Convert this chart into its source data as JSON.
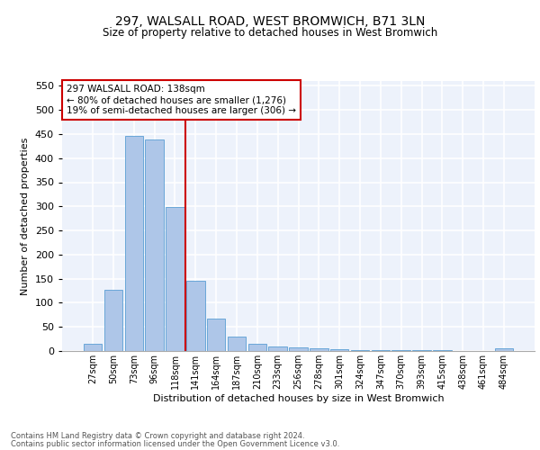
{
  "title1": "297, WALSALL ROAD, WEST BROMWICH, B71 3LN",
  "title2": "Size of property relative to detached houses in West Bromwich",
  "xlabel": "Distribution of detached houses by size in West Bromwich",
  "ylabel": "Number of detached properties",
  "footnote1": "Contains HM Land Registry data © Crown copyright and database right 2024.",
  "footnote2": "Contains public sector information licensed under the Open Government Licence v3.0.",
  "annotation_line1": "297 WALSALL ROAD: 138sqm",
  "annotation_line2": "← 80% of detached houses are smaller (1,276)",
  "annotation_line3": "19% of semi-detached houses are larger (306) →",
  "bar_labels": [
    "27sqm",
    "50sqm",
    "73sqm",
    "96sqm",
    "118sqm",
    "141sqm",
    "164sqm",
    "187sqm",
    "210sqm",
    "233sqm",
    "256sqm",
    "278sqm",
    "301sqm",
    "324sqm",
    "347sqm",
    "370sqm",
    "393sqm",
    "415sqm",
    "438sqm",
    "461sqm",
    "484sqm"
  ],
  "bar_values": [
    15,
    127,
    447,
    438,
    299,
    145,
    68,
    29,
    15,
    10,
    7,
    6,
    3,
    2,
    2,
    1,
    1,
    1,
    0,
    0,
    5
  ],
  "bar_color": "#aec6e8",
  "bar_edge_color": "#5a9fd4",
  "vline_x_idx": 5,
  "vline_color": "#cc0000",
  "annotation_box_color": "#cc0000",
  "ylim": [
    0,
    560
  ],
  "yticks": [
    0,
    50,
    100,
    150,
    200,
    250,
    300,
    350,
    400,
    450,
    500,
    550
  ],
  "background_color": "#edf2fb",
  "grid_color": "#ffffff"
}
